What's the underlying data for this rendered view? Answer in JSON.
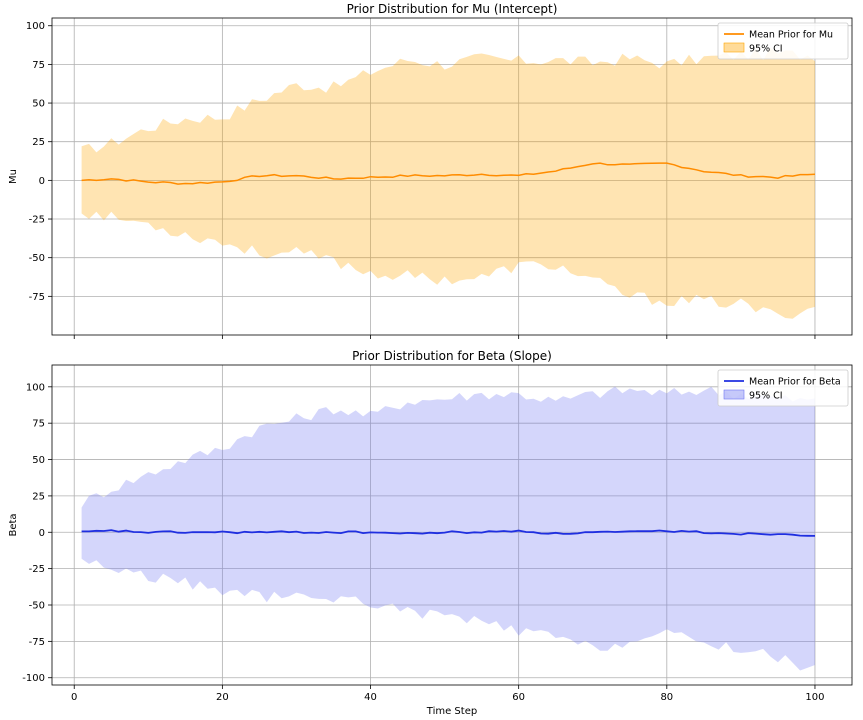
{
  "xlabel": "Time Step",
  "chart_data": [
    {
      "type": "area",
      "title": "Prior Distribution for Mu (Intercept)",
      "xlabel": "",
      "ylabel": "Mu",
      "xlim": [
        -3,
        105
      ],
      "ylim": [
        -100,
        105
      ],
      "xticks": [
        0,
        20,
        40,
        60,
        80,
        100
      ],
      "xtick_labels_visible": false,
      "yticks": [
        -75,
        -50,
        -25,
        0,
        25,
        50,
        75,
        100
      ],
      "grid": true,
      "legend_position": "top-right",
      "colors": {
        "line": "#ff8c00",
        "band": "#ffa500"
      },
      "x_anchor": [
        1,
        5,
        10,
        15,
        20,
        25,
        30,
        35,
        40,
        45,
        50,
        55,
        60,
        65,
        70,
        75,
        80,
        85,
        90,
        95,
        100
      ],
      "series": [
        {
          "name": "Mean Prior for Mu",
          "kind": "line",
          "values": [
            0,
            1,
            -1,
            -2,
            -1,
            3,
            3,
            1,
            2,
            3,
            3,
            4,
            3,
            6,
            11,
            10,
            11,
            6,
            3,
            2,
            4
          ]
        },
        {
          "name": "95% CI",
          "kind": "band",
          "upper": [
            19,
            24,
            34,
            40,
            41,
            52,
            62,
            60,
            70,
            78,
            75,
            79,
            77,
            78,
            76,
            79,
            75,
            79,
            81,
            82,
            81
          ],
          "lower": [
            -20,
            -24,
            -28,
            -35,
            -40,
            -47,
            -47,
            -52,
            -60,
            -62,
            -64,
            -63,
            -55,
            -55,
            -65,
            -75,
            -78,
            -78,
            -80,
            -88,
            -82
          ]
        }
      ]
    },
    {
      "type": "area",
      "title": "Prior Distribution for Beta (Slope)",
      "xlabel": "Time Step",
      "ylabel": "Beta",
      "xlim": [
        -3,
        105
      ],
      "ylim": [
        -105,
        115
      ],
      "xticks": [
        0,
        20,
        40,
        60,
        80,
        100
      ],
      "xtick_labels_visible": true,
      "yticks": [
        -100,
        -75,
        -50,
        -25,
        0,
        25,
        50,
        75,
        100
      ],
      "grid": true,
      "legend_position": "top-right",
      "colors": {
        "line": "#1f2fe0",
        "band": "#7078f2"
      },
      "x_anchor": [
        1,
        5,
        10,
        15,
        20,
        25,
        30,
        35,
        40,
        45,
        50,
        55,
        60,
        65,
        70,
        75,
        80,
        85,
        90,
        95,
        100
      ],
      "series": [
        {
          "name": "Mean Prior for Beta",
          "kind": "line",
          "values": [
            0,
            1,
            0,
            0,
            0,
            0,
            0,
            0,
            0,
            -1,
            0,
            0,
            1,
            -1,
            0,
            0,
            1,
            0,
            -1,
            -1,
            -2
          ]
        },
        {
          "name": "95% CI",
          "kind": "band",
          "upper": [
            20,
            30,
            40,
            50,
            58,
            72,
            78,
            85,
            80,
            90,
            92,
            95,
            95,
            90,
            95,
            98,
            95,
            98,
            95,
            92,
            90
          ],
          "lower": [
            -18,
            -25,
            -30,
            -35,
            -40,
            -44,
            -45,
            -45,
            -48,
            -55,
            -57,
            -62,
            -68,
            -72,
            -80,
            -75,
            -70,
            -76,
            -80,
            -86,
            -95
          ]
        }
      ]
    }
  ]
}
